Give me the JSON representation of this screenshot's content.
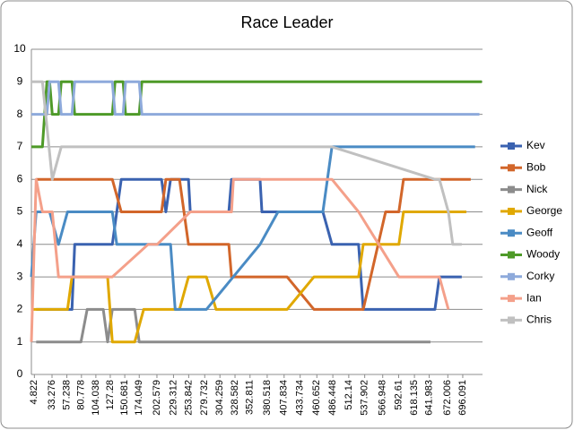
{
  "chart_data": {
    "type": "line",
    "title": "Race Leader",
    "xlim": [
      0,
      728
    ],
    "xticks": [
      4.822,
      33.276,
      57.238,
      80.778,
      104.038,
      127.28,
      150.681,
      174.049,
      202.579,
      229.312,
      253.842,
      279.732,
      304.259,
      328.582,
      352.811,
      380.518,
      407.834,
      433.734,
      460.652,
      486.448,
      512.14,
      537.902,
      566.948,
      592.61,
      618.135,
      641.983,
      672.006,
      696.091
    ],
    "ylim": [
      0,
      10
    ],
    "yticks": [
      0,
      1,
      2,
      3,
      4,
      5,
      6,
      7,
      8,
      9,
      10
    ],
    "grid": true,
    "legend": "right",
    "series": [
      {
        "name": "Kev",
        "color": "#3a62b0",
        "x": [
          7.7,
          65.5,
          69.9,
          130.6,
          145,
          210,
          217,
          224.6,
          253.5,
          256.4,
          318.6,
          323,
          369,
          372,
          470.4,
          485,
          528,
          535.5,
          651.2,
          658.4,
          694.5
        ],
        "values": [
          2,
          2,
          4,
          4,
          6,
          6,
          5,
          6,
          6,
          5,
          5,
          6,
          6,
          5,
          5,
          4,
          4,
          2,
          2,
          3,
          3
        ]
      },
      {
        "name": "Bob",
        "color": "#d2662a",
        "x": [
          7.7,
          130.6,
          145,
          210,
          217,
          239,
          253.5,
          318.6,
          323,
          412.6,
          456,
          463,
          535.5,
          571.6,
          593,
          600.5,
          709
        ],
        "values": [
          6,
          6,
          5,
          5,
          6,
          6,
          4,
          4,
          3,
          3,
          2,
          2,
          2,
          5,
          5,
          6,
          6
        ]
      },
      {
        "name": "Nick",
        "color": "#8c8c8c",
        "x": [
          7.7,
          80,
          90,
          116,
          123,
          130.6,
          166.8,
          174,
          644
        ],
        "values": [
          1,
          1,
          2,
          2,
          1,
          2,
          2,
          1,
          1
        ]
      },
      {
        "name": "George",
        "color": "#e0a800",
        "x": [
          0,
          58.3,
          65.5,
          123,
          130.6,
          166.8,
          181.2,
          239,
          253.5,
          282.4,
          298,
          412.6,
          456,
          528,
          535.5,
          593,
          600.5,
          702
        ],
        "values": [
          2,
          2,
          3,
          3,
          1,
          1,
          2,
          2,
          3,
          3,
          2,
          2,
          3,
          3,
          4,
          4,
          5,
          5
        ]
      },
      {
        "name": "Geoff",
        "color": "#4a8bc4",
        "x": [
          0,
          7.7,
          29.4,
          43.8,
          58.3,
          130.6,
          137.8,
          166.8,
          224.6,
          232,
          282.4,
          369,
          398,
          470.4,
          485,
          716
        ],
        "values": [
          3,
          5,
          5,
          4,
          5,
          5,
          4,
          4,
          4,
          2,
          2,
          4,
          5,
          5,
          7,
          7
        ]
      },
      {
        "name": "Woody",
        "color": "#4e9a28",
        "x": [
          0,
          17.8,
          25,
          29.4,
          33.7,
          43.8,
          48.2,
          65.5,
          69.9,
          130.6,
          135,
          148,
          152,
          174,
          178.3,
          727
        ],
        "values": [
          7,
          7,
          9,
          9,
          8,
          8,
          9,
          9,
          8,
          8,
          9,
          9,
          8,
          8,
          9,
          9
        ]
      },
      {
        "name": "Corky",
        "color": "#8eaadb",
        "x": [
          0,
          25,
          29.4,
          43.8,
          48.2,
          65.5,
          69.9,
          130.6,
          135,
          148,
          152,
          174,
          178.3,
          723
        ],
        "values": [
          8,
          8,
          9,
          9,
          8,
          8,
          9,
          9,
          8,
          8,
          9,
          9,
          8,
          8
        ]
      },
      {
        "name": "Ian",
        "color": "#f4a08a",
        "x": [
          0,
          7.7,
          17.8,
          33.7,
          43.8,
          123,
          130.6,
          188.4,
          203,
          256.4,
          323,
          326,
          485,
          528,
          593,
          658.4,
          672.9
        ],
        "values": [
          1,
          6,
          5,
          5,
          3,
          3,
          3,
          4,
          4,
          5,
          5,
          6,
          6,
          5,
          3,
          3,
          2
        ]
      },
      {
        "name": "Chris",
        "color": "#c0c0c0",
        "x": [
          0,
          17.8,
          33.7,
          48.2,
          58.3,
          65.5,
          485,
          651.2,
          658.4,
          672.9,
          680,
          694.5
        ],
        "values": [
          9,
          9,
          6,
          7,
          7,
          7,
          7,
          6,
          6,
          5,
          4,
          4
        ]
      }
    ]
  }
}
